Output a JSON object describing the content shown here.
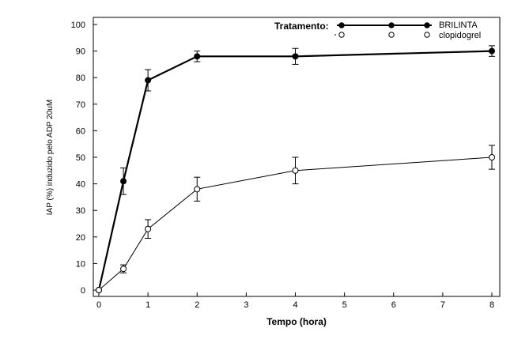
{
  "chart_data": {
    "type": "line",
    "xlabel": "Tempo (hora)",
    "ylabel": "IAP (%) induzido pelo ADP 20uM",
    "xlim": [
      0,
      8
    ],
    "ylim": [
      0,
      100
    ],
    "x_ticks": [
      "0",
      "1",
      "2",
      "3",
      "4",
      "5",
      "6",
      "7",
      "8"
    ],
    "y_ticks": [
      "0",
      "10",
      "20",
      "30",
      "40",
      "50",
      "60",
      "70",
      "80",
      "90",
      "100"
    ],
    "legend_title": "Tratamento:",
    "legend_position": "top-right",
    "grid": false,
    "x": [
      0,
      0.5,
      1,
      2,
      4,
      8
    ],
    "series": [
      {
        "name": "BRILINTA",
        "marker": "filled-circle",
        "color": "#000000",
        "values": [
          0,
          41,
          79,
          88,
          88,
          90
        ],
        "errors": [
          0.5,
          5,
          4,
          2,
          3,
          2
        ]
      },
      {
        "name": "clopidogrel",
        "marker": "open-circle",
        "color": "#000000",
        "values": [
          0,
          8,
          23,
          38,
          45,
          50
        ],
        "errors": [
          0.5,
          1.5,
          3.5,
          4.5,
          5,
          4.5
        ]
      }
    ]
  }
}
